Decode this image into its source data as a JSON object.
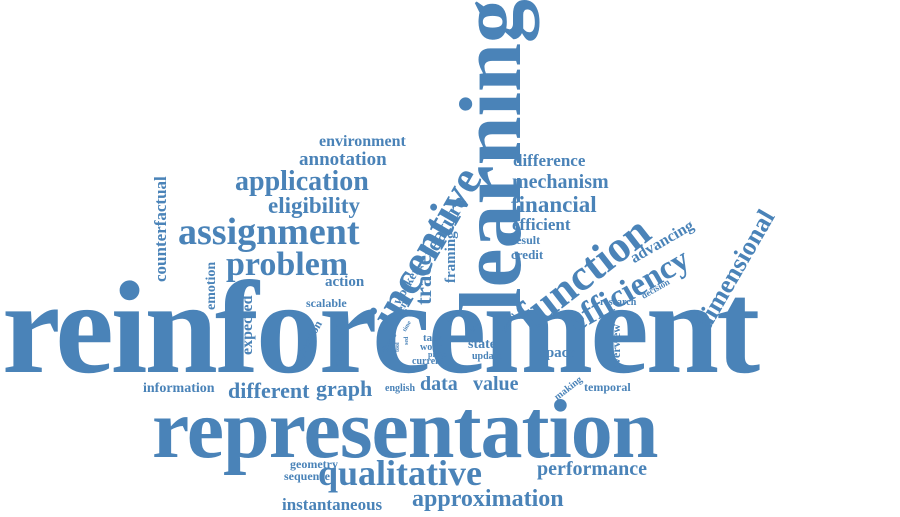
{
  "colors": {
    "word": "#4a83b8",
    "background": "#ffffff"
  },
  "words": [
    "reinforcement",
    "representation",
    "learning",
    "incentive",
    "function",
    "assignment",
    "qualitative",
    "approximation",
    "efficiency",
    "problem",
    "application",
    "eligibility",
    "financial",
    "dimensional",
    "mechanism",
    "difference",
    "annotation",
    "environment",
    "performance",
    "feature",
    "trace",
    "data",
    "value",
    "graph",
    "different",
    "information",
    "instantaneous",
    "counterfactual",
    "emotion",
    "expected",
    "efficient",
    "advancing",
    "framing",
    "worker",
    "action",
    "scalable",
    "agent",
    "question",
    "method",
    "space",
    "state",
    "update",
    "current",
    "task",
    "work",
    "thesis",
    "proto",
    "english",
    "making",
    "temporal",
    "overview",
    "research",
    "decision",
    "result",
    "credit",
    "geometry",
    "sequence",
    "recent",
    "case",
    "tool",
    "best",
    "time",
    "sed"
  ]
}
